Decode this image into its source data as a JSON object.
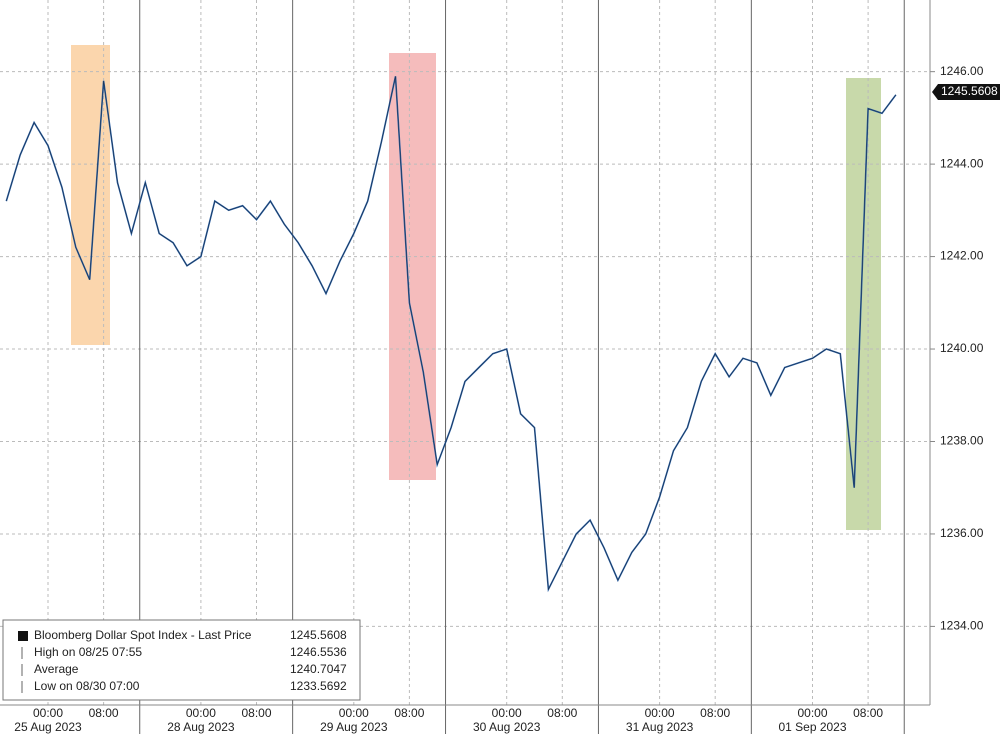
{
  "chart_data": {
    "type": "line",
    "categories": [
      null,
      null,
      null,
      "00:00",
      null,
      null,
      null,
      "08:00",
      null,
      null,
      null,
      null,
      null,
      null,
      "00:00",
      null,
      null,
      null,
      "08:00",
      null,
      null,
      null,
      null,
      null,
      null,
      "00:00",
      null,
      null,
      null,
      "08:00",
      null,
      null,
      null,
      null,
      null,
      null,
      "00:00",
      null,
      null,
      null,
      "08:00",
      null,
      null,
      null,
      null,
      null,
      null,
      "00:00",
      null,
      null,
      null,
      "08:00",
      null,
      null,
      null,
      null,
      null,
      null,
      "00:00",
      null,
      null,
      null,
      "08:00",
      null,
      null
    ],
    "dates": [
      null,
      null,
      null,
      "25 Aug 2023",
      null,
      null,
      null,
      null,
      null,
      null,
      null,
      null,
      null,
      null,
      "28 Aug 2023",
      null,
      null,
      null,
      null,
      null,
      null,
      null,
      null,
      null,
      null,
      "29 Aug 2023",
      null,
      null,
      null,
      null,
      null,
      null,
      null,
      null,
      null,
      null,
      "30 Aug 2023",
      null,
      null,
      null,
      null,
      null,
      null,
      null,
      null,
      null,
      null,
      "31 Aug 2023",
      null,
      null,
      null,
      null,
      null,
      null,
      null,
      null,
      null,
      null,
      "01 Sep 2023",
      null,
      null,
      null,
      null,
      null,
      null
    ],
    "series": [
      {
        "name": "Bloomberg Dollar Spot Index - Last Price",
        "color": "#2b62a8",
        "values": [
          1243.2,
          1244.2,
          1244.9,
          1244.4,
          1243.5,
          1242.2,
          1241.5,
          1245.8,
          1243.6,
          1242.5,
          1243.6,
          1242.5,
          1242.3,
          1241.8,
          1242.0,
          1243.2,
          1243.0,
          1243.1,
          1242.8,
          1243.2,
          1242.7,
          1242.3,
          1241.8,
          1241.2,
          1241.9,
          1242.5,
          1243.2,
          1244.5,
          1245.9,
          1241.0,
          1239.5,
          1237.5,
          1238.3,
          1239.3,
          1239.6,
          1239.9,
          1240.0,
          1238.6,
          1238.3,
          1234.8,
          1235.4,
          1236.0,
          1236.3,
          1235.7,
          1235.0,
          1235.6,
          1236.0,
          1236.8,
          1237.8,
          1238.3,
          1239.3,
          1239.9,
          1239.4,
          1239.8,
          1239.7,
          1239.0,
          1239.6,
          1239.7,
          1239.8,
          1240.0,
          1239.9,
          1237.0,
          1245.2,
          1245.1,
          1245.5
        ]
      }
    ],
    "last_value": 1245.5608,
    "ylim": [
      1232.3,
      1247.55
    ],
    "yticks": [
      {
        "value": 1234,
        "label": "1234.00"
      },
      {
        "value": 1236,
        "label": "1236.00"
      },
      {
        "value": 1238,
        "label": "1238.00"
      },
      {
        "value": 1240,
        "label": "1240.00"
      },
      {
        "value": 1242,
        "label": "1242.00"
      },
      {
        "value": 1244,
        "label": "1244.00"
      },
      {
        "value": 1246,
        "label": "1246.00"
      }
    ],
    "grid": true,
    "legend": [
      {
        "label": "Bloomberg Dollar Spot Index - Last Price",
        "value": 1245.5608
      },
      {
        "label": "High on 08/25 07:55",
        "value": 1246.5536
      },
      {
        "label": "Average",
        "value": 1240.7047
      },
      {
        "label": "Low on 08/30 07:00",
        "value": 1233.5692
      }
    ]
  }
}
